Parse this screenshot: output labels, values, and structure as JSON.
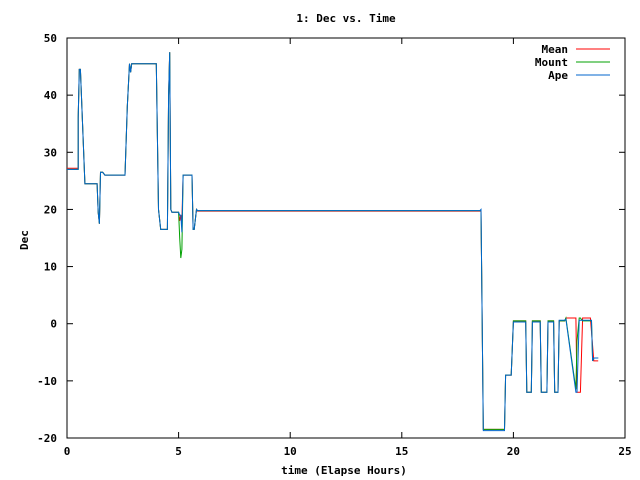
{
  "chart_data": {
    "type": "line",
    "title": "1: Dec vs. Time",
    "xlabel": "time (Elapse Hours)",
    "ylabel": "Dec",
    "xlim": [
      0,
      25
    ],
    "ylim": [
      -20,
      50
    ],
    "xticks": [
      0,
      5,
      10,
      15,
      20,
      25
    ],
    "yticks": [
      -20,
      -10,
      0,
      10,
      20,
      30,
      40,
      50
    ],
    "grid": false,
    "legend_position": "top-right",
    "series": [
      {
        "name": "Mean",
        "color": "#ff0000",
        "x": [
          0,
          0.5,
          0.5,
          0.55,
          0.6,
          0.8,
          0.85,
          1.35,
          1.4,
          1.45,
          1.5,
          1.6,
          1.7,
          2.5,
          2.6,
          2.7,
          2.8,
          2.85,
          2.9,
          3.1,
          4.0,
          4.1,
          4.2,
          4.3,
          4.5,
          4.55,
          4.6,
          4.65,
          4.7,
          4.8,
          5.0,
          5.05,
          5.1,
          5.15,
          5.2,
          5.25,
          5.6,
          5.65,
          5.7,
          5.8,
          5.85,
          14.8,
          18.5,
          18.55,
          18.6,
          18.65,
          18.7,
          19.6,
          19.65,
          19.7,
          19.9,
          20.0,
          20.5,
          20.55,
          20.6,
          20.8,
          20.85,
          21.2,
          21.25,
          21.5,
          21.55,
          21.8,
          21.85,
          22.0,
          22.05,
          22.3,
          22.35,
          22.8,
          22.85,
          23.0,
          23.1,
          23.4,
          23.45,
          23.6,
          23.8
        ],
        "y": [
          27.2,
          27.2,
          36,
          44.5,
          44.5,
          24.5,
          24.5,
          24.5,
          19.5,
          17.5,
          26.5,
          26.5,
          26,
          26,
          26,
          38,
          45.5,
          44,
          45.5,
          45.5,
          45.5,
          20,
          16.5,
          16.5,
          16.5,
          40,
          47.5,
          20,
          19.5,
          19.5,
          19.5,
          18,
          19,
          18,
          26,
          26,
          26,
          16.5,
          16.5,
          20,
          19.7,
          19.7,
          19.7,
          19.7,
          0,
          -18.5,
          -18.5,
          -18.5,
          -9,
          -9,
          -9,
          0.5,
          0.5,
          0.5,
          -12,
          -12,
          0.5,
          0.5,
          -12,
          -12,
          0.5,
          0.5,
          -12,
          -12,
          0.5,
          0.5,
          1,
          1,
          -12,
          -12,
          1,
          1,
          1,
          -6.5,
          -6.5
        ]
      },
      {
        "name": "Mount",
        "color": "#00a000",
        "x": [
          0,
          0.5,
          0.5,
          0.55,
          0.6,
          0.8,
          0.85,
          1.35,
          1.4,
          1.45,
          1.5,
          1.6,
          1.7,
          2.5,
          2.6,
          2.7,
          2.8,
          2.85,
          2.9,
          3.1,
          4.0,
          4.1,
          4.2,
          4.3,
          4.5,
          4.55,
          4.6,
          4.65,
          4.7,
          4.8,
          5.0,
          5.05,
          5.1,
          5.15,
          5.2,
          5.25,
          5.6,
          5.65,
          5.7,
          5.8,
          5.85,
          18.5,
          18.55,
          18.6,
          18.65,
          18.7,
          19.6,
          19.65,
          19.7,
          19.9,
          20.0,
          20.5,
          20.55,
          20.6,
          20.8,
          20.85,
          21.2,
          21.25,
          21.5,
          21.55,
          21.8,
          21.85,
          22.0,
          22.05,
          22.3,
          22.35,
          22.8,
          22.85,
          22.95,
          23.0,
          23.1,
          23.5,
          23.55,
          23.6,
          23.8
        ],
        "y": [
          27,
          27,
          36,
          44.5,
          44.5,
          24.5,
          24.5,
          24.5,
          19.5,
          17.5,
          26.5,
          26.5,
          26,
          26,
          26,
          38,
          45.5,
          44,
          45.5,
          45.5,
          45.5,
          20,
          16.5,
          16.5,
          16.5,
          40,
          47.5,
          20,
          19.5,
          19.5,
          19.5,
          15,
          11.5,
          13,
          26,
          26,
          26,
          16.5,
          16.5,
          20,
          19.8,
          19.8,
          19.8,
          0,
          -18.5,
          -18.5,
          -18.5,
          -9,
          -9,
          -9,
          0.5,
          0.5,
          0.5,
          -12,
          -12,
          0.5,
          0.5,
          -12,
          -12,
          0.5,
          0.5,
          -12,
          -12,
          0.5,
          0.5,
          1,
          -11.5,
          -3,
          1,
          1,
          0.5,
          0.5,
          -6.5,
          -6,
          -6
        ]
      },
      {
        "name": "Ape",
        "color": "#0066cc",
        "x": [
          0,
          0.5,
          0.5,
          0.55,
          0.6,
          0.8,
          0.85,
          1.35,
          1.4,
          1.45,
          1.5,
          1.6,
          1.7,
          2.5,
          2.6,
          2.7,
          2.8,
          2.85,
          2.9,
          3.1,
          4.0,
          4.1,
          4.2,
          4.3,
          4.5,
          4.55,
          4.6,
          4.65,
          4.7,
          4.8,
          5.0,
          5.05,
          5.1,
          5.15,
          5.2,
          5.25,
          5.6,
          5.65,
          5.7,
          5.8,
          5.85,
          18.5,
          18.55,
          18.6,
          18.65,
          18.7,
          19.6,
          19.65,
          19.7,
          19.9,
          20.0,
          20.5,
          20.55,
          20.6,
          20.8,
          20.85,
          21.2,
          21.25,
          21.5,
          21.55,
          21.8,
          21.85,
          22.0,
          22.05,
          22.3,
          22.35,
          22.8,
          22.85,
          22.95,
          23.0,
          23.1,
          23.5,
          23.55,
          23.6,
          23.8
        ],
        "y": [
          27,
          27,
          36,
          44.5,
          44.5,
          24.5,
          24.5,
          24.5,
          19.5,
          17.5,
          26.5,
          26.5,
          26,
          26,
          26,
          38,
          45.5,
          44,
          45.5,
          45.5,
          45.5,
          20,
          16.5,
          16.5,
          16.5,
          40,
          47.5,
          20,
          19.5,
          19.5,
          19.5,
          19,
          19,
          16,
          26,
          26,
          26,
          16.5,
          16.5,
          20,
          19.8,
          19.8,
          20,
          0,
          -18.7,
          -18.7,
          -18.7,
          -9,
          -9,
          -9,
          0.3,
          0.3,
          0.3,
          -12,
          -12,
          0.3,
          0.3,
          -12,
          -12,
          0.3,
          0.3,
          -12,
          -12,
          0.6,
          0.6,
          0.8,
          -12,
          -12,
          0.6,
          0.6,
          0.6,
          0.6,
          -6.5,
          -6,
          -6
        ]
      }
    ]
  }
}
